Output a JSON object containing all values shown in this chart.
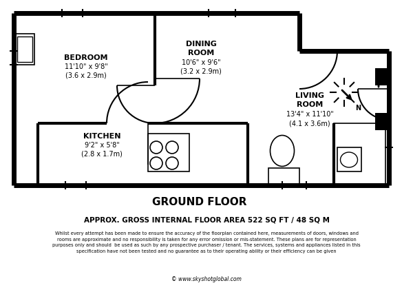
{
  "bg_color": "#ffffff",
  "wall_color": "#000000",
  "title": "GROUND FLOOR",
  "area_line": "APPROX. GROSS INTERNAL FLOOR AREA 522 SQ FT / 48 SQ M",
  "disclaimer": "Whilst every attempt has been made to ensure the accuracy of the floorplan contained here, measurements of doors, windows and\nrooms are approximate and no responsibility is taken for any error omission or mis-statement. These plans are for representation\npurposes only and should  be used as such by any prospective purchaser / tenant. The services, systems and appliances listed in this\nspecification have not been tested and no guarantee as to their operating ability or their efficiency can be given",
  "copyright": "© www.skyshotglobal.com",
  "outer_lw": 5.0,
  "inner_lw": 3.0,
  "thin_lw": 1.2
}
